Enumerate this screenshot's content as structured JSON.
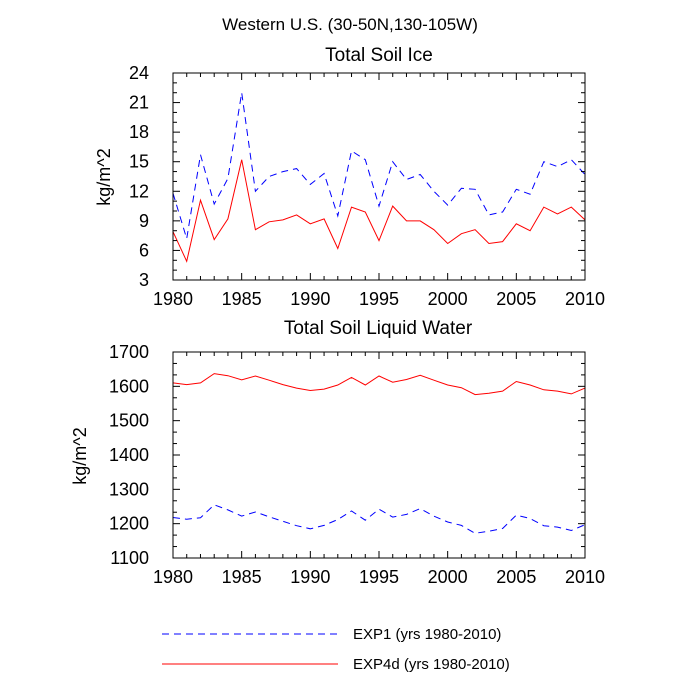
{
  "figure_title": "Western U.S. (30-50N,130-105W)",
  "colors": {
    "exp1": "#0000ff",
    "exp4d": "#ff0000",
    "axis": "#000000"
  },
  "legend": [
    {
      "label": "EXP1 (yrs 1980-2010)",
      "style": "dashed",
      "color": "#0000ff"
    },
    {
      "label": "EXP4d (yrs 1980-2010)",
      "style": "solid",
      "color": "#ff0000"
    }
  ],
  "chart_data": [
    {
      "type": "line",
      "title": "Total Soil Ice",
      "xlabel": "",
      "ylabel": "kg/m^2",
      "xlim": [
        1980,
        2010
      ],
      "ylim": [
        3,
        24
      ],
      "xticks": [
        1980,
        1985,
        1990,
        1995,
        2000,
        2005,
        2010
      ],
      "yticks": [
        3,
        6,
        9,
        12,
        15,
        18,
        21,
        24
      ],
      "x": [
        1980,
        1981,
        1982,
        1983,
        1984,
        1985,
        1986,
        1987,
        1988,
        1989,
        1990,
        1991,
        1992,
        1993,
        1994,
        1995,
        1996,
        1997,
        1998,
        1999,
        2000,
        2001,
        2002,
        2003,
        2004,
        2005,
        2006,
        2007,
        2008,
        2009,
        2010
      ],
      "series": [
        {
          "name": "EXP1",
          "style": "dashed",
          "values": [
            11.8,
            7.2,
            15.7,
            10.7,
            13.3,
            22.0,
            12.0,
            13.5,
            14.0,
            14.3,
            12.7,
            13.8,
            9.5,
            16.1,
            15.2,
            10.5,
            15.0,
            13.2,
            13.7,
            12.0,
            10.6,
            12.3,
            12.2,
            9.6,
            9.9,
            12.2,
            11.7,
            15.0,
            14.5,
            15.2,
            13.7
          ]
        },
        {
          "name": "EXP4d",
          "style": "solid",
          "values": [
            7.9,
            4.9,
            11.1,
            7.1,
            9.2,
            15.2,
            8.1,
            8.9,
            9.1,
            9.6,
            8.7,
            9.2,
            6.2,
            10.4,
            9.9,
            7.0,
            10.5,
            9.0,
            9.0,
            8.1,
            6.7,
            7.7,
            8.1,
            6.7,
            6.9,
            8.7,
            8.0,
            10.4,
            9.7,
            10.4,
            9.1
          ]
        }
      ]
    },
    {
      "type": "line",
      "title": "Total Soil Liquid Water",
      "xlabel": "",
      "ylabel": "kg/m^2",
      "xlim": [
        1980,
        2010
      ],
      "ylim": [
        1100,
        1700
      ],
      "xticks": [
        1980,
        1985,
        1990,
        1995,
        2000,
        2005,
        2010
      ],
      "yticks": [
        1100,
        1200,
        1300,
        1400,
        1500,
        1600,
        1700
      ],
      "x": [
        1980,
        1981,
        1982,
        1983,
        1984,
        1985,
        1986,
        1987,
        1988,
        1989,
        1990,
        1991,
        1992,
        1993,
        1994,
        1995,
        1996,
        1997,
        1998,
        1999,
        2000,
        2001,
        2002,
        2003,
        2004,
        2005,
        2006,
        2007,
        2008,
        2009,
        2010
      ],
      "series": [
        {
          "name": "EXP1",
          "style": "dashed",
          "values": [
            1218,
            1213,
            1217,
            1255,
            1240,
            1222,
            1234,
            1220,
            1207,
            1194,
            1185,
            1195,
            1212,
            1237,
            1210,
            1242,
            1219,
            1227,
            1244,
            1222,
            1205,
            1195,
            1172,
            1178,
            1186,
            1225,
            1215,
            1194,
            1190,
            1180,
            1197
          ]
        },
        {
          "name": "EXP4d",
          "style": "solid",
          "values": [
            1610,
            1605,
            1610,
            1637,
            1631,
            1619,
            1630,
            1618,
            1605,
            1595,
            1588,
            1592,
            1604,
            1626,
            1604,
            1630,
            1612,
            1620,
            1632,
            1618,
            1604,
            1596,
            1576,
            1580,
            1586,
            1614,
            1604,
            1590,
            1586,
            1578,
            1595
          ]
        }
      ]
    }
  ]
}
